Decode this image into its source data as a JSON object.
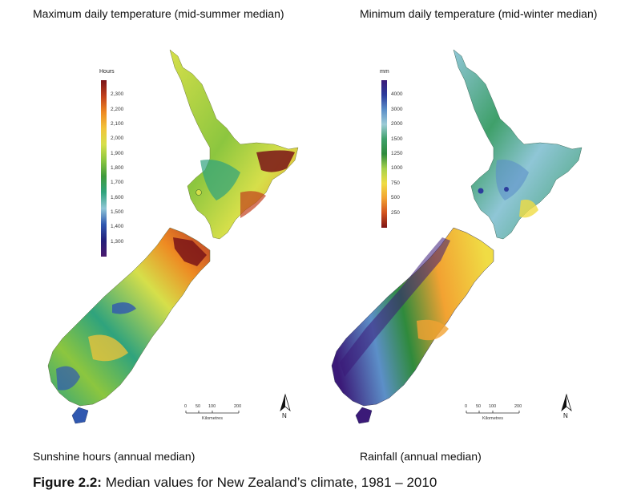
{
  "titles": {
    "top_left": "Maximum daily temperature (mid-summer median)",
    "top_right": "Minimum daily temperature (mid-winter median)"
  },
  "captions": {
    "left": "Sunshine hours (annual median)",
    "right": "Rainfall (annual median)"
  },
  "figure": {
    "label": "Figure 2.2:",
    "text": " Median values for New Zealand’s climate, 1981 – 2010"
  },
  "legend_sunshine": {
    "unit": "Hours",
    "labels": [
      "2,300",
      "2,200",
      "2,100",
      "2,000",
      "1,900",
      "1,800",
      "1,700",
      "1,600",
      "1,500",
      "1,400",
      "1,300"
    ],
    "colors": [
      "#7a1418",
      "#c2401c",
      "#ee8a22",
      "#f2c43a",
      "#d6df4a",
      "#8cc63f",
      "#3f9a3c",
      "#2fa37d",
      "#8fc6d6",
      "#3058b0",
      "#231f7a",
      "#4b1a6e"
    ]
  },
  "legend_rainfall": {
    "unit": "mm",
    "labels": [
      "4000",
      "3000",
      "2000",
      "1500",
      "1250",
      "1000",
      "750",
      "500",
      "250"
    ],
    "colors": [
      "#3b1a78",
      "#2c3c9c",
      "#5c8fc8",
      "#9ccbd6",
      "#3fa06a",
      "#2f8a3c",
      "#a8d24c",
      "#f0dc44",
      "#f2a232",
      "#d2521e",
      "#7e1414"
    ]
  },
  "scalebar": {
    "ticks": [
      "0",
      "50",
      "100",
      "200"
    ],
    "unit": "Kilometres"
  },
  "north_label": "N"
}
